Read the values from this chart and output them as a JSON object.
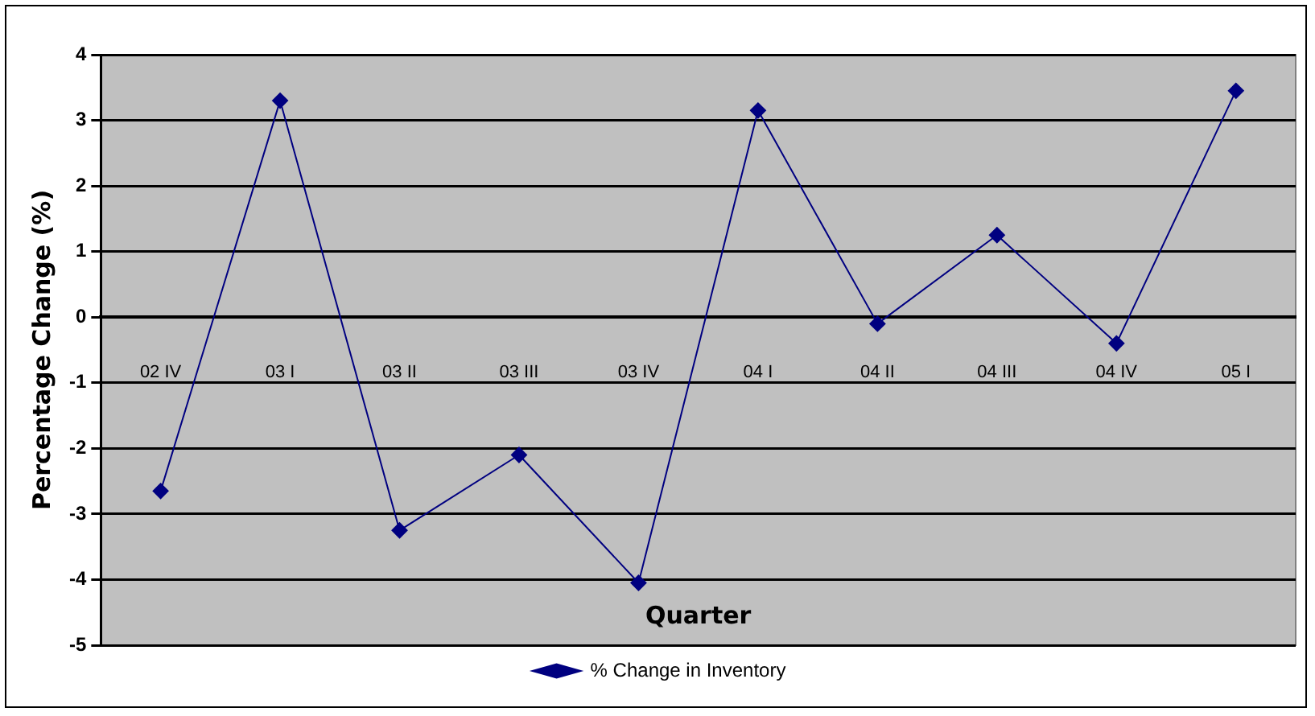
{
  "chart_data": {
    "type": "line",
    "xlabel": "Quarter",
    "ylabel": "Percentage Change (%)",
    "categories": [
      "02 IV",
      "03 I",
      "03 II",
      "03 III",
      "03 IV",
      "04 I",
      "04 II",
      "04 III",
      "04 IV",
      "05 I"
    ],
    "series": [
      {
        "name": "% Change in Inventory",
        "color": "#000080",
        "values": [
          -2.65,
          3.3,
          -3.25,
          -2.1,
          -4.05,
          3.15,
          -0.1,
          1.25,
          -0.4,
          3.45
        ]
      }
    ],
    "ylim": [
      -5,
      4
    ],
    "yticks": [
      -5,
      -4,
      -3,
      -2,
      -1,
      0,
      1,
      2,
      3,
      4
    ],
    "grid": "y",
    "legend": "bottom",
    "marker": "diamond",
    "line_style": "solid"
  }
}
